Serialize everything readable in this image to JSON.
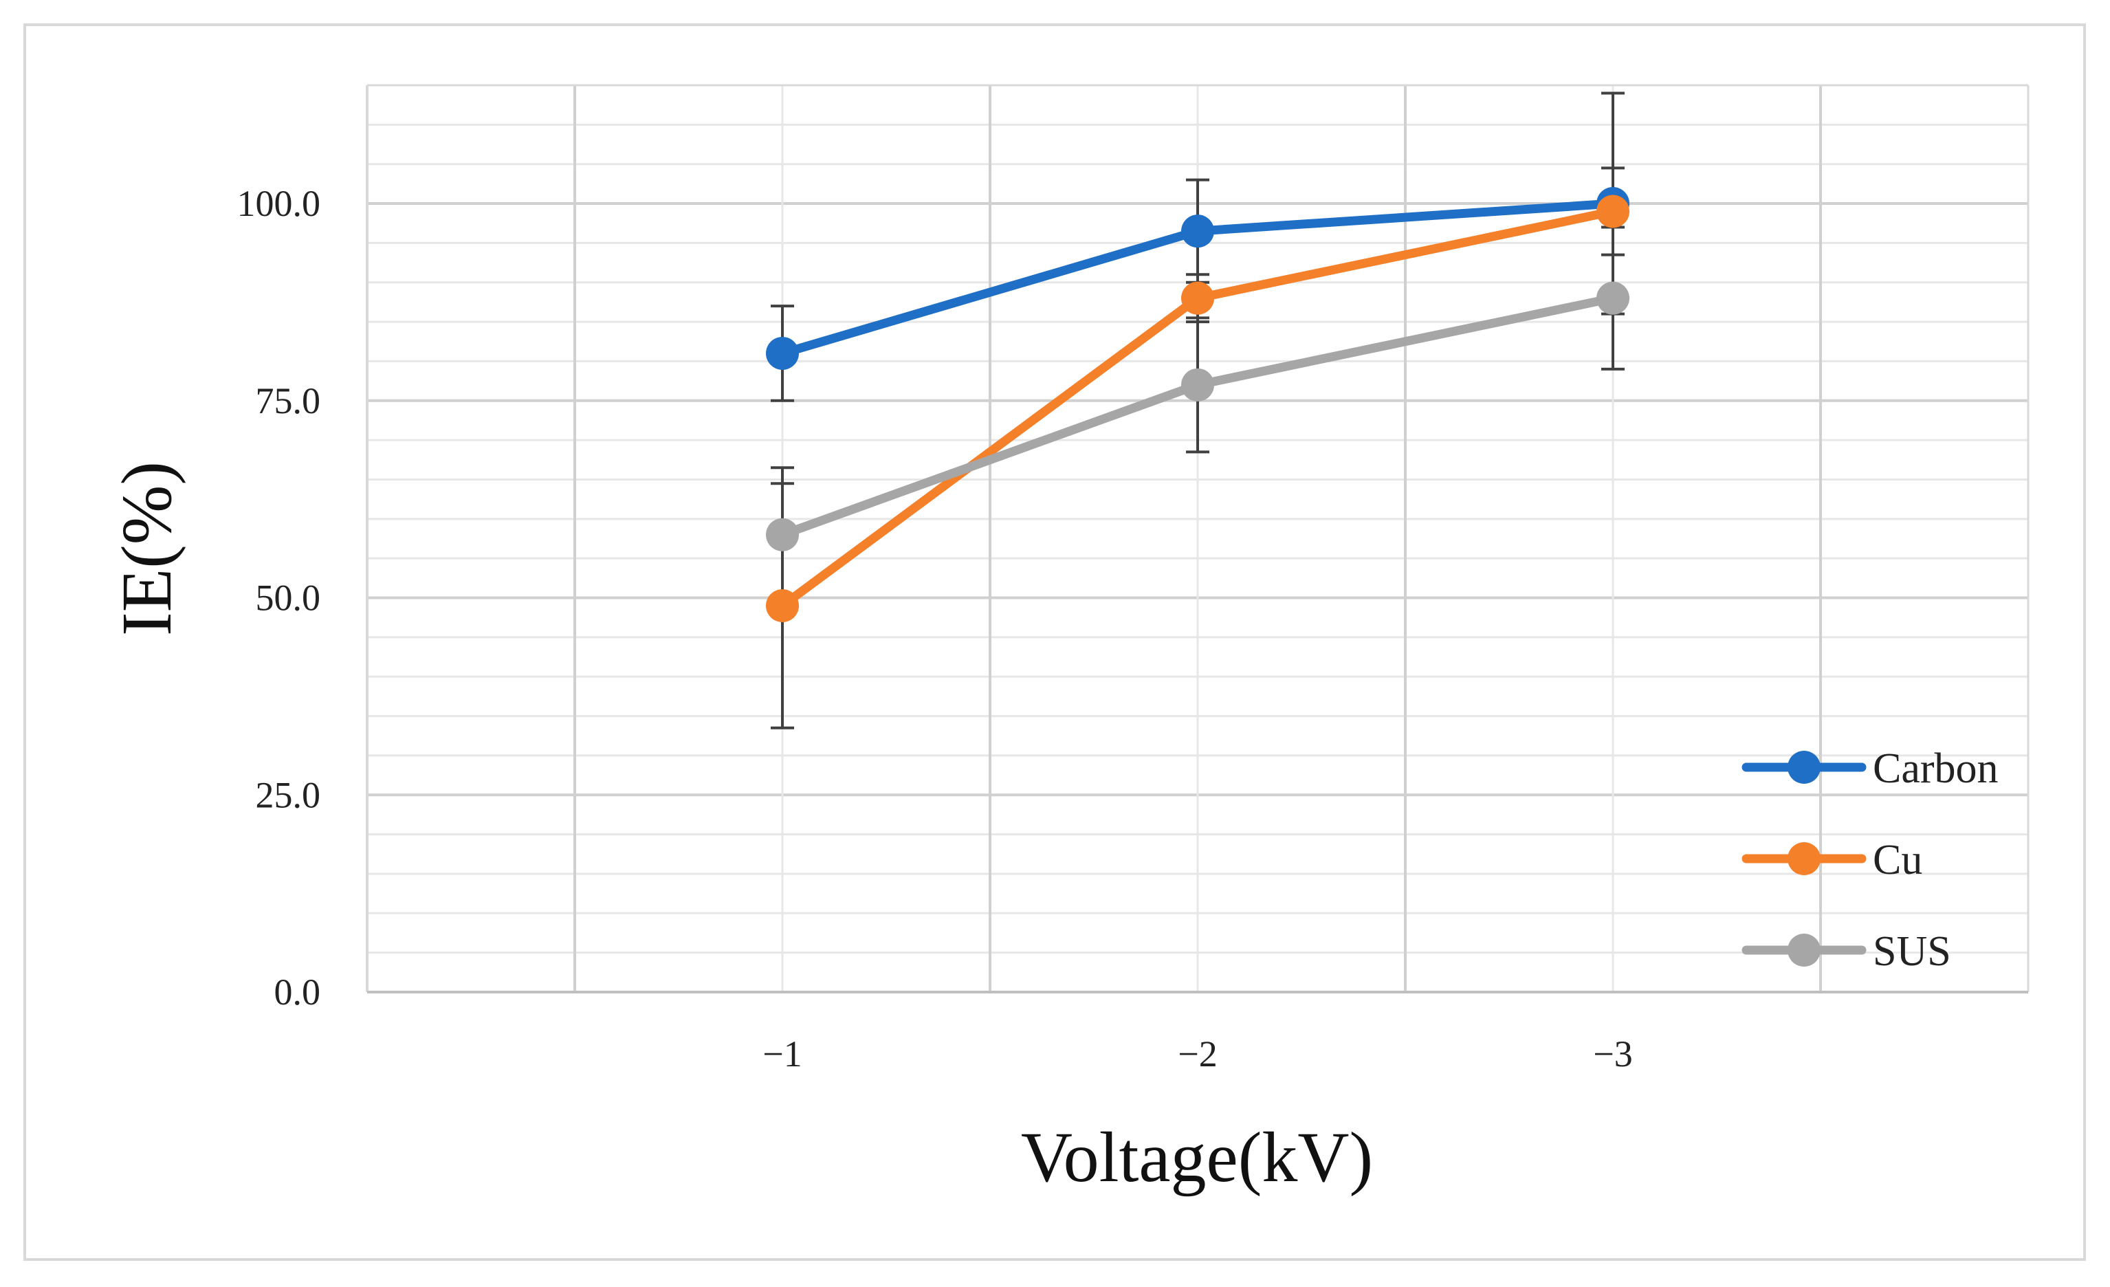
{
  "chart_data": {
    "type": "line",
    "title": "",
    "xlabel": "Voltage(kV)",
    "ylabel": "IE(%)",
    "categories": [
      "−1",
      "−2",
      "−3"
    ],
    "ylim": [
      0,
      115
    ],
    "yticks": [
      0,
      25,
      50,
      75,
      100
    ],
    "ytick_labels": [
      "0.0",
      "25.0",
      "50.0",
      "75.0",
      "100.0"
    ],
    "grid": true,
    "minor_grid_step": 5,
    "legend_position": "bottom-right",
    "series": [
      {
        "name": "Carbon",
        "color": "#1f6fc6",
        "values": [
          81.0,
          96.5,
          100.0
        ],
        "errors": [
          6.0,
          6.5,
          14.0
        ]
      },
      {
        "name": "Cu",
        "color": "#f5802a",
        "values": [
          49.0,
          88.0,
          99.0
        ],
        "errors": [
          15.5,
          3.0,
          5.5
        ]
      },
      {
        "name": "SUS",
        "color": "#a6a6a6",
        "values": [
          58.0,
          77.0,
          88.0
        ],
        "errors": [
          8.5,
          8.5,
          9.0
        ]
      }
    ]
  }
}
